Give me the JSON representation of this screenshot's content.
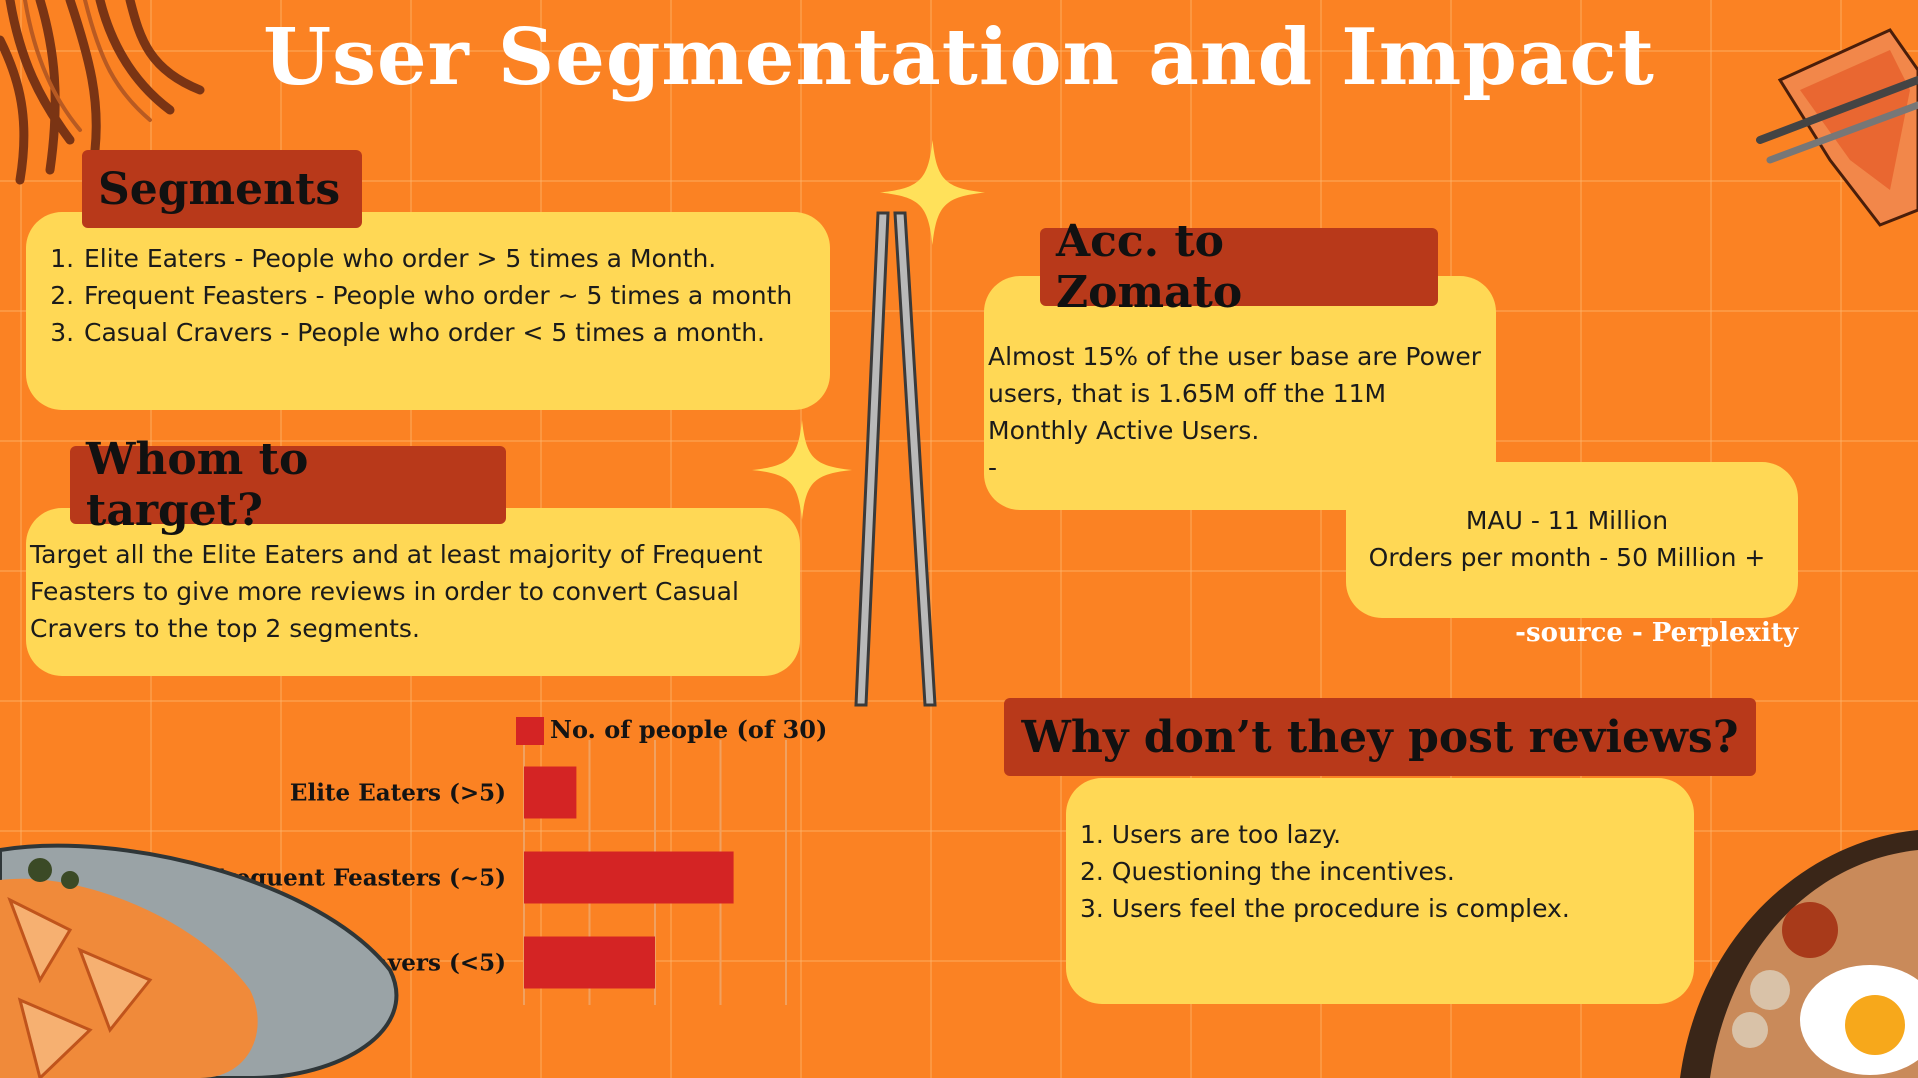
{
  "title": "User Segmentation and Impact",
  "segments": {
    "heading": "Segments",
    "items": [
      "Elite Eaters - People who order > 5 times a Month.",
      "Frequent Feasters - People who order ~ 5 times a month",
      "Casual Cravers - People who order < 5 times a month."
    ]
  },
  "target": {
    "heading": "Whom to target?",
    "text": "Target all the Elite Eaters and at least majority of Frequent Feasters to give more reviews in order to convert Casual Cravers to the top 2 segments."
  },
  "zomato": {
    "heading": "Acc. to Zomato",
    "line1": "Almost 15% of the user base are Power users, that is 1.65M off the 11M Monthly Active Users.",
    "dash": "-",
    "mau": "MAU - 11 Million",
    "orders": "Orders per month - 50 Million +",
    "source": "-source - Perplexity"
  },
  "why": {
    "heading": "Why don’t they post reviews?",
    "items": [
      "Users are too lazy.",
      "Questioning the incentives.",
      "Users feel the procedure is complex."
    ]
  },
  "chart_data": {
    "type": "bar",
    "orientation": "horizontal",
    "categories": [
      "Elite Eaters (>5)",
      "Frequent Feasters (~5)",
      "Casual Cravers (<5)"
    ],
    "series": [
      {
        "name": "No. of people (of 30)",
        "values": [
          4,
          16,
          10
        ]
      }
    ],
    "xlim": [
      0,
      20
    ],
    "xticks": [
      0,
      5,
      10,
      15,
      20
    ],
    "color": "#d42424",
    "grid": true,
    "legend": "top"
  },
  "colors": {
    "background": "#fb8223",
    "tab": "#b8391a",
    "card": "#ffd855",
    "sparkle": "#ffe15a",
    "bar": "#d42424"
  }
}
